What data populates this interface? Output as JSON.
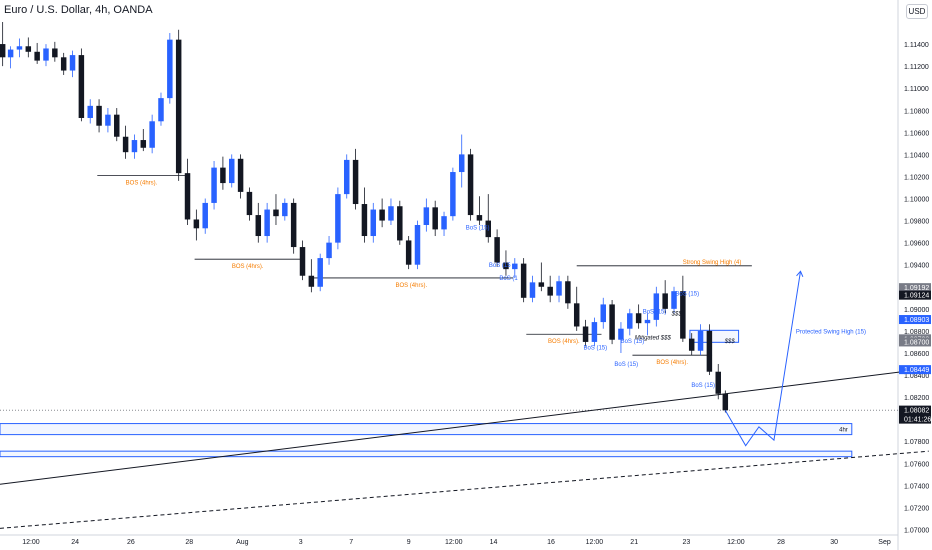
{
  "header": {
    "title": "Euro / U.S. Dollar, 4h, OANDA",
    "currency_button": "USD"
  },
  "colors": {
    "up": "#2962ff",
    "down": "#131722",
    "bos_orange": "#f57c00",
    "zone_blue": "#2962ff",
    "trend": "#131722"
  },
  "chart_data": {
    "type": "candlestick",
    "title": "Euro / U.S. Dollar, 4h, OANDA",
    "ylim": [
      1.0695,
      1.116
    ],
    "xlim": [
      0,
      100
    ],
    "y_ticks": [
      1.114,
      1.112,
      1.11,
      1.108,
      1.106,
      1.104,
      1.102,
      1.1,
      1.098,
      1.096,
      1.094,
      1.092,
      1.09,
      1.088,
      1.086,
      1.084,
      1.082,
      1.08,
      1.078,
      1.076,
      1.074,
      1.072,
      1.07
    ],
    "x_ticks": [
      {
        "x": 3.5,
        "label": "12:00"
      },
      {
        "x": 8.5,
        "label": "24"
      },
      {
        "x": 14.8,
        "label": "26"
      },
      {
        "x": 21.4,
        "label": "28"
      },
      {
        "x": 27.4,
        "label": "Aug"
      },
      {
        "x": 34,
        "label": "3"
      },
      {
        "x": 39.7,
        "label": "7"
      },
      {
        "x": 46.2,
        "label": "9"
      },
      {
        "x": 51.3,
        "label": "12:00"
      },
      {
        "x": 55.8,
        "label": "14"
      },
      {
        "x": 62.3,
        "label": "16"
      },
      {
        "x": 67.2,
        "label": "12:00"
      },
      {
        "x": 71.7,
        "label": "21"
      },
      {
        "x": 77.6,
        "label": "23"
      },
      {
        "x": 83.2,
        "label": "12:00"
      },
      {
        "x": 88.3,
        "label": "28"
      },
      {
        "x": 94.3,
        "label": "30"
      },
      {
        "x": 100,
        "label": "Sep"
      }
    ],
    "price_labels": [
      {
        "value": 1.09192,
        "text": "1.09192",
        "color": "#787b86"
      },
      {
        "value": 1.09124,
        "text": "1.09124",
        "color": "#131722"
      },
      {
        "value": 1.08903,
        "text": "1.08903",
        "color": "#2962ff"
      },
      {
        "value": 1.08728,
        "text": "1.08728",
        "color": "#787b86"
      },
      {
        "value": 1.087,
        "text": "1.08700",
        "color": "#787b86"
      },
      {
        "value": 1.08449,
        "text": "1.08449",
        "color": "#2962ff"
      },
      {
        "value": 1.08082,
        "text": "1.08082",
        "color": "#131722"
      }
    ],
    "countdown": "01:41:26",
    "last_price": 1.08082,
    "candles": [
      [
        0.3,
        1.114,
        1.116,
        1.112,
        1.1128
      ],
      [
        1.2,
        1.1128,
        1.1138,
        1.1118,
        1.1135
      ],
      [
        2.2,
        1.1135,
        1.1145,
        1.1128,
        1.1138
      ],
      [
        3.2,
        1.1138,
        1.1146,
        1.1128,
        1.1133
      ],
      [
        4.2,
        1.1133,
        1.1141,
        1.1122,
        1.1125
      ],
      [
        5.2,
        1.1125,
        1.114,
        1.112,
        1.1136
      ],
      [
        6.2,
        1.1136,
        1.1142,
        1.1124,
        1.1128
      ],
      [
        7.2,
        1.1128,
        1.1132,
        1.1112,
        1.1116
      ],
      [
        8.2,
        1.1116,
        1.1134,
        1.111,
        1.113
      ],
      [
        9.2,
        1.113,
        1.1136,
        1.107,
        1.1073
      ],
      [
        10.2,
        1.1073,
        1.109,
        1.1068,
        1.1084
      ],
      [
        11.2,
        1.1084,
        1.109,
        1.106,
        1.1066
      ],
      [
        12.2,
        1.1066,
        1.1082,
        1.106,
        1.1076
      ],
      [
        13.2,
        1.1076,
        1.1082,
        1.1052,
        1.1056
      ],
      [
        14.2,
        1.1056,
        1.1066,
        1.1036,
        1.1042
      ],
      [
        15.2,
        1.1042,
        1.1058,
        1.1036,
        1.1053
      ],
      [
        16.2,
        1.1053,
        1.1063,
        1.1043,
        1.1046
      ],
      [
        17.2,
        1.1046,
        1.1076,
        1.1041,
        1.107
      ],
      [
        18.2,
        1.107,
        1.1096,
        1.1066,
        1.1091
      ],
      [
        19.2,
        1.1091,
        1.115,
        1.1086,
        1.1144
      ],
      [
        20.2,
        1.1144,
        1.1153,
        1.1016,
        1.1023
      ],
      [
        21.2,
        1.1023,
        1.1036,
        1.0976,
        1.0981
      ],
      [
        22.2,
        1.0981,
        1.099,
        1.0962,
        1.0973
      ],
      [
        23.2,
        1.0973,
        1.1,
        1.0968,
        1.0996
      ],
      [
        24.2,
        1.0996,
        1.1034,
        1.099,
        1.1028
      ],
      [
        25.2,
        1.1028,
        1.1038,
        1.1008,
        1.1014
      ],
      [
        26.2,
        1.1014,
        1.104,
        1.101,
        1.1036
      ],
      [
        27.2,
        1.1036,
        1.104,
        1.1,
        1.1006
      ],
      [
        28.2,
        1.1006,
        1.101,
        1.098,
        1.0985
      ],
      [
        29.2,
        1.0985,
        1.0996,
        1.096,
        1.0966
      ],
      [
        30.2,
        1.0966,
        1.0996,
        1.096,
        1.099
      ],
      [
        31.2,
        1.099,
        1.1004,
        1.0976,
        1.0984
      ],
      [
        32.2,
        1.0984,
        1.1,
        1.098,
        1.0996
      ],
      [
        33.2,
        1.0996,
        1.1,
        1.095,
        1.0956
      ],
      [
        34.2,
        1.0956,
        1.0962,
        1.0926,
        1.093
      ],
      [
        35.2,
        1.093,
        1.0945,
        1.0915,
        1.092
      ],
      [
        36.2,
        1.092,
        1.095,
        1.0916,
        1.0946
      ],
      [
        37.2,
        1.0946,
        1.0966,
        1.094,
        1.096
      ],
      [
        38.2,
        1.096,
        1.101,
        1.0954,
        1.1004
      ],
      [
        39.2,
        1.1004,
        1.104,
        1.1,
        1.1035
      ],
      [
        40.2,
        1.1035,
        1.1045,
        1.099,
        1.0995
      ],
      [
        41.2,
        1.0995,
        1.101,
        1.096,
        1.0966
      ],
      [
        42.2,
        1.0966,
        1.0996,
        1.096,
        1.099
      ],
      [
        43.2,
        1.099,
        1.1,
        1.0974,
        1.098
      ],
      [
        44.2,
        1.098,
        1.1,
        1.0976,
        1.0993
      ],
      [
        45.2,
        1.0993,
        1.0998,
        1.0958,
        1.0962
      ],
      [
        46.2,
        1.0962,
        1.0966,
        1.0936,
        1.094
      ],
      [
        47.2,
        1.094,
        1.098,
        1.0936,
        1.0976
      ],
      [
        48.2,
        1.0976,
        1.1,
        1.097,
        1.0992
      ],
      [
        49.2,
        1.0992,
        1.0998,
        1.0966,
        1.0972
      ],
      [
        50.2,
        1.0972,
        1.0988,
        1.0966,
        1.0984
      ],
      [
        51.2,
        1.0984,
        1.1028,
        1.098,
        1.1024
      ],
      [
        52.2,
        1.1024,
        1.1058,
        1.101,
        1.104
      ],
      [
        53.2,
        1.104,
        1.1045,
        1.098,
        1.0985
      ],
      [
        54.2,
        1.0985,
        1.1002,
        1.0976,
        1.098
      ],
      [
        55.2,
        1.098,
        1.1004,
        1.096,
        1.0965
      ],
      [
        56.2,
        1.0965,
        1.0972,
        1.0938,
        1.0942
      ],
      [
        57.2,
        1.0942,
        1.0953,
        1.093,
        1.0936
      ],
      [
        58.2,
        1.0936,
        1.0946,
        1.0928,
        1.0941
      ],
      [
        59.2,
        1.0941,
        1.0946,
        1.0906,
        1.091
      ],
      [
        60.2,
        1.091,
        1.093,
        1.0906,
        1.0924
      ],
      [
        61.2,
        1.0924,
        1.0942,
        1.0916,
        1.092
      ],
      [
        62.2,
        1.092,
        1.093,
        1.0906,
        1.0912
      ],
      [
        63.2,
        1.0912,
        1.093,
        1.0906,
        1.0925
      ],
      [
        64.2,
        1.0925,
        1.093,
        1.09,
        1.0905
      ],
      [
        65.2,
        1.0905,
        1.092,
        1.088,
        1.0884
      ],
      [
        66.2,
        1.0884,
        1.089,
        1.0866,
        1.087
      ],
      [
        67.2,
        1.087,
        1.0892,
        1.0866,
        1.0888
      ],
      [
        68.2,
        1.0888,
        1.091,
        1.0882,
        1.0904
      ],
      [
        69.2,
        1.0904,
        1.0908,
        1.0868,
        1.0872
      ],
      [
        70.2,
        1.0872,
        1.0888,
        1.086,
        1.0882
      ],
      [
        71.2,
        1.0882,
        1.09,
        1.0876,
        1.0896
      ],
      [
        72.2,
        1.0896,
        1.0904,
        1.0882,
        1.0887
      ],
      [
        73.2,
        1.0887,
        1.0896,
        1.0876,
        1.089
      ],
      [
        74.2,
        1.089,
        1.092,
        1.0884,
        1.0914
      ],
      [
        75.2,
        1.0914,
        1.0926,
        1.0896,
        1.09
      ],
      [
        76.2,
        1.09,
        1.092,
        1.0896,
        1.0916
      ],
      [
        77.2,
        1.0916,
        1.093,
        1.087,
        1.0873
      ],
      [
        78.2,
        1.0873,
        1.0878,
        1.0858,
        1.0862
      ],
      [
        79.2,
        1.0862,
        1.0886,
        1.0858,
        1.088
      ],
      [
        80.2,
        1.088,
        1.0886,
        1.084,
        1.0843
      ],
      [
        81.2,
        1.0843,
        1.085,
        1.0818,
        1.0823
      ],
      [
        82.0,
        1.0823,
        1.0826,
        1.0806,
        1.0808
      ]
    ],
    "horizontal_levels": [
      {
        "from": 11,
        "to": 21,
        "y": 1.1021,
        "label": "BOS (4hrs).",
        "color": "#f57c00"
      },
      {
        "from": 22,
        "to": 34,
        "y": 1.0945,
        "label": "BOS (4hrs).",
        "color": "#f57c00"
      },
      {
        "from": 35,
        "to": 58,
        "y": 1.0928,
        "label": "BOS (4hrs).",
        "color": "#f57c00"
      },
      {
        "from": 59.5,
        "to": 68,
        "y": 1.0877,
        "label": "BOS (4hrs).",
        "color": "#f57c00"
      },
      {
        "from": 71.5,
        "to": 80.5,
        "y": 1.0858,
        "label": "BOS (4hrs).",
        "color": "#f57c00"
      },
      {
        "from": 65.2,
        "to": 85,
        "y": 1.0939,
        "label": "Strong Swing High (4)",
        "color": "#f57c00"
      },
      {
        "from": 78,
        "to": 83.5,
        "y": 1.0876,
        "label": "Protected Swing High (15)",
        "color": "#2962ff"
      }
    ],
    "small_labels": [
      {
        "x": 54,
        "y": 1.0972,
        "text": "BoS (15)"
      },
      {
        "x": 56.5,
        "y": 1.0938,
        "text": "BoS (15"
      },
      {
        "x": 57.5,
        "y": 1.0926,
        "text": "BoS (1"
      },
      {
        "x": 67.3,
        "y": 1.0863,
        "text": "BoS (15)"
      },
      {
        "x": 70.8,
        "y": 1.0848,
        "text": "BoS (15)"
      },
      {
        "x": 71.5,
        "y": 1.0869,
        "text": "BoS (15)"
      },
      {
        "x": 74,
        "y": 1.0896,
        "text": "BoS (15)"
      },
      {
        "x": 77.7,
        "y": 1.0912,
        "text": "BoS (15)"
      },
      {
        "x": 79.5,
        "y": 1.0829,
        "text": "BoS (15)"
      }
    ],
    "liquidity_labels": [
      {
        "x": 73.8,
        "y": 1.0872,
        "text": "Mitigated $$$"
      },
      {
        "x": 76.5,
        "y": 1.0894,
        "text": "$$$"
      },
      {
        "x": 82.5,
        "y": 1.0869,
        "text": "$$$"
      }
    ],
    "zone_rects": [
      {
        "x0": 0,
        "x1": 96.3,
        "y_top": 1.0796,
        "y_bot": 1.0786,
        "label": "4hr"
      },
      {
        "x0": 0,
        "x1": 96.3,
        "y_top": 1.0771,
        "y_bot": 1.0766,
        "label": ""
      }
    ],
    "trendline": {
      "x0": 0,
      "y0": 1.0741,
      "x1": 105,
      "y1": 1.0846
    },
    "dashed_line": {
      "x0": 0,
      "y0": 1.0701,
      "x1": 105,
      "y1": 1.0771
    },
    "projection": [
      [
        82,
        1.0808
      ],
      [
        84.3,
        1.0776
      ],
      [
        85.8,
        1.0793
      ],
      [
        87.5,
        1.0781
      ],
      [
        90.5,
        1.0934
      ]
    ]
  }
}
